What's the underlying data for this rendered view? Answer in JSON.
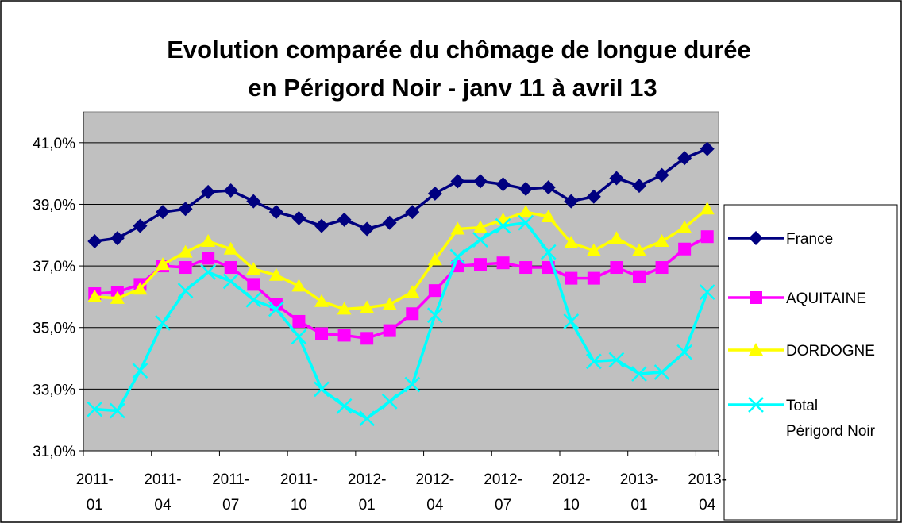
{
  "chart_data": {
    "type": "line",
    "title": [
      "Evolution comparée du chômage de longue durée",
      "en Périgord Noir - janv 11 à avril 13"
    ],
    "categories": [
      "2011-01",
      null,
      null,
      "2011-04",
      null,
      null,
      "2011-07",
      null,
      null,
      "2011-10",
      null,
      null,
      "2012-01",
      null,
      null,
      "2012-04",
      null,
      null,
      "2012-07",
      null,
      null,
      "2012-10",
      null,
      null,
      "2013-01",
      null,
      null,
      "2013-04"
    ],
    "series": [
      {
        "name": "France",
        "color": "#000080",
        "marker": "diamond",
        "values": [
          37.8,
          37.9,
          38.3,
          38.75,
          38.85,
          39.4,
          39.45,
          39.1,
          38.75,
          38.55,
          38.3,
          38.5,
          38.2,
          38.4,
          38.75,
          39.35,
          39.75,
          39.75,
          39.65,
          39.5,
          39.55,
          39.1,
          39.25,
          39.85,
          39.6,
          39.95,
          40.5,
          40.8
        ]
      },
      {
        "name": "AQUITAINE",
        "color": "#ff00ff",
        "marker": "square",
        "values": [
          36.1,
          36.15,
          36.4,
          37.0,
          36.95,
          37.25,
          36.95,
          36.4,
          35.75,
          35.2,
          34.8,
          34.75,
          34.65,
          34.9,
          35.45,
          36.2,
          37.0,
          37.05,
          37.1,
          36.95,
          36.95,
          36.6,
          36.6,
          36.95,
          36.65,
          36.95,
          37.55,
          37.95
        ]
      },
      {
        "name": "DORDOGNE",
        "color": "#ffff00",
        "marker": "triangle",
        "values": [
          36.0,
          35.95,
          36.25,
          37.05,
          37.45,
          37.8,
          37.55,
          36.9,
          36.7,
          36.35,
          35.85,
          35.6,
          35.65,
          35.75,
          36.15,
          37.2,
          38.2,
          38.25,
          38.5,
          38.75,
          38.6,
          37.75,
          37.5,
          37.9,
          37.5,
          37.8,
          38.25,
          38.85
        ]
      },
      {
        "name": "Total Périgord Noir",
        "color": "#00ffff",
        "marker": "x",
        "values": [
          32.35,
          32.3,
          33.6,
          35.15,
          36.2,
          36.8,
          36.5,
          35.9,
          35.6,
          34.7,
          33.0,
          32.45,
          32.05,
          32.6,
          33.15,
          35.4,
          37.3,
          37.85,
          38.3,
          38.4,
          37.45,
          35.2,
          33.9,
          33.95,
          33.5,
          33.55,
          34.2,
          36.15
        ]
      }
    ],
    "ylim": [
      31,
      42
    ],
    "yticks": [
      {
        "value": 31,
        "label": "31,0%"
      },
      {
        "value": 33,
        "label": "33,0%"
      },
      {
        "value": 35,
        "label": "35,0%"
      },
      {
        "value": 37,
        "label": "37,0%"
      },
      {
        "value": 39,
        "label": "39,0%"
      },
      {
        "value": 41,
        "label": "41,0%"
      }
    ],
    "grid": true,
    "legend": "right",
    "plot_background": "#c0c0c0"
  }
}
